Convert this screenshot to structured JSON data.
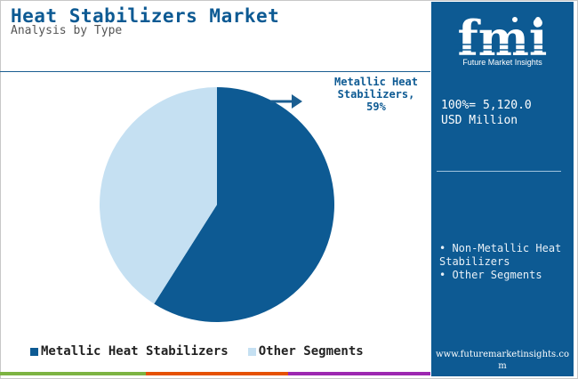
{
  "header": {
    "title": "Heat Stabilizers Market",
    "subtitle": "Analysis by Type"
  },
  "chart_data": {
    "type": "pie",
    "categories": [
      "Metallic Heat Stabilizers",
      "Other Segments"
    ],
    "values": [
      59,
      41
    ],
    "colors": [
      "#0d5a93",
      "#c5e0f2"
    ],
    "legend_position": "bottom",
    "annotation": {
      "segment": "Metallic Heat Stabilizers",
      "line1": "Metallic Heat",
      "line2": "Stabilizers,",
      "line3": "59%"
    }
  },
  "legend": {
    "items": [
      {
        "label": "Metallic Heat Stabilizers",
        "color": "#0d5a93"
      },
      {
        "label": "Other Segments",
        "color": "#c5e0f2"
      }
    ]
  },
  "side_panel": {
    "logo_text": "fmi",
    "logo_caption": "Future Market Insights",
    "total_line1": "100%= 5,120.0",
    "total_line2": "USD Million",
    "segments": [
      "Non-Metallic Heat Stabilizers",
      "Other Segments"
    ],
    "website": "www.futuremarketinsights.com"
  },
  "colors": {
    "brand": "#0d5a93",
    "light": "#c5e0f2",
    "bottom_bar": [
      "#7cb342",
      "#e65100",
      "#9c27b0"
    ]
  }
}
